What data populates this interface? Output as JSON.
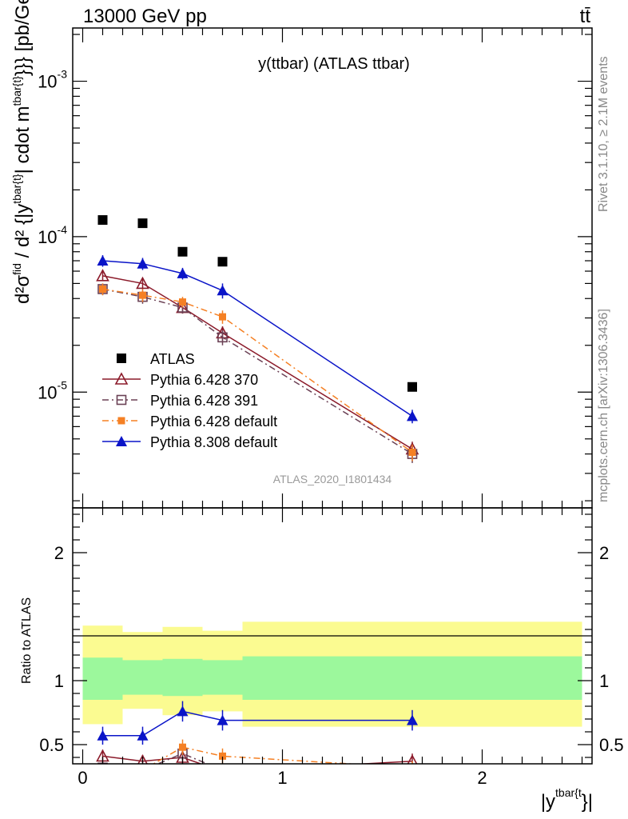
{
  "header": {
    "energy_label": "13000 GeV pp",
    "process_label": "tt̄"
  },
  "side_labels": {
    "rivet": "Rivet 3.1.10, ≥ 2.1M events",
    "mcplots": "mcplots.cern.ch [arXiv:1306.3436]"
  },
  "chart_data": [
    {
      "type": "scatter",
      "title": "y(ttbar) (ATLAS ttbar)",
      "watermark": "ATLAS_2020_I1801434",
      "ylabel_main": "d²σ^fid / d²{|y^tbar{t}| cdot m^tbar{t}}} [pb/GeV]",
      "xlabel": "|y^tbar{t}|",
      "yscale": "log",
      "ylim": [
        1.8e-06,
        0.0022
      ],
      "xlim": [
        -0.05,
        2.55
      ],
      "y_ticks_labeled": [
        "10^-3",
        "10^-4",
        "10^-5"
      ],
      "legend_position": "lower-left",
      "x": [
        0.1,
        0.3,
        0.5,
        0.7,
        1.65
      ],
      "x_edges": [
        0.0,
        0.2,
        0.4,
        0.6,
        0.8,
        2.5
      ],
      "series": [
        {
          "name": "ATLAS",
          "color": "#000000",
          "marker": "square-filled",
          "line": "none",
          "values": [
            0.000128,
            0.000122,
            8e-05,
            6.9e-05,
            1.08e-05
          ]
        },
        {
          "name": "Pythia 6.428 370",
          "color": "#8b1a2a",
          "marker": "triangle-open",
          "line": "solid",
          "values": [
            5.6e-05,
            5e-05,
            3.5e-05,
            2.4e-05,
            4.3e-06
          ],
          "errors": [
            4e-06,
            4e-06,
            3e-06,
            2.5e-06,
            5e-07
          ]
        },
        {
          "name": "Pythia 6.428 391",
          "color": "#6b4155",
          "marker": "square-open",
          "line": "dashdot",
          "values": [
            4.6e-05,
            4.1e-05,
            3.5e-05,
            2.25e-05,
            4e-06
          ],
          "errors": [
            4e-06,
            4e-06,
            3e-06,
            2.5e-06,
            5e-07
          ]
        },
        {
          "name": "Pythia 6.428 default",
          "color": "#f58024",
          "marker": "square-filled-small",
          "line": "dashdot",
          "values": [
            4.6e-05,
            4.2e-05,
            3.8e-05,
            3.05e-05,
            4.1e-06
          ],
          "errors": [
            4e-06,
            4e-06,
            3e-06,
            3e-06,
            5e-07
          ]
        },
        {
          "name": "Pythia 8.308 default",
          "color": "#0a14c8",
          "marker": "triangle-filled",
          "line": "solid",
          "values": [
            7e-05,
            6.7e-05,
            5.8e-05,
            4.5e-05,
            7e-06
          ],
          "errors": [
            6e-06,
            6e-06,
            5e-06,
            5e-06,
            7e-07
          ]
        }
      ]
    },
    {
      "type": "scatter",
      "ylabel": "Ratio to ATLAS",
      "yscale": "linear",
      "ylim": [
        0.35,
        2.35
      ],
      "xlim": [
        -0.05,
        2.55
      ],
      "y_ticks": [
        0.5,
        1,
        2
      ],
      "x_ticks": [
        0,
        1,
        2
      ],
      "reference_line": 1,
      "bands": {
        "x_edges": [
          0.0,
          0.2,
          0.4,
          0.6,
          0.8,
          2.5
        ],
        "inner_color": "#9cf89c",
        "outer_color": "#fbfb91",
        "inner_low": [
          0.85,
          0.89,
          0.88,
          0.89,
          0.85
        ],
        "inner_high": [
          1.18,
          1.16,
          1.17,
          1.16,
          1.19
        ],
        "outer_low": [
          0.66,
          0.78,
          0.73,
          0.76,
          0.64
        ],
        "outer_high": [
          1.43,
          1.38,
          1.42,
          1.39,
          1.46
        ]
      },
      "x": [
        0.1,
        0.3,
        0.5,
        0.7,
        1.65
      ],
      "series": [
        {
          "name": "Pythia 6.428 370",
          "color": "#8b1a2a",
          "marker": "triangle-open",
          "line": "solid",
          "values": [
            0.41,
            0.37,
            0.4,
            0.29,
            0.37
          ],
          "errors": [
            0.05,
            0.05,
            0.05,
            0.05,
            0.06
          ]
        },
        {
          "name": "Pythia 6.428 391",
          "color": "#6b4155",
          "marker": "square-open",
          "line": "dashdot",
          "values": [
            0.32,
            0.3,
            0.43,
            0.3,
            0.3
          ],
          "errors": [
            0.05,
            0.05,
            0.05,
            0.05,
            0.05
          ]
        },
        {
          "name": "Pythia 6.428 default",
          "color": "#f58024",
          "marker": "square-filled-small",
          "line": "dashdot",
          "values": [
            0.3,
            0.3,
            0.48,
            0.41,
            0.32
          ],
          "errors": [
            0.05,
            0.05,
            0.06,
            0.06,
            0.05
          ]
        },
        {
          "name": "Pythia 8.308 default",
          "color": "#0a14c8",
          "marker": "triangle-filled",
          "line": "solid",
          "values": [
            0.57,
            0.57,
            0.76,
            0.69,
            0.69
          ],
          "errors": [
            0.07,
            0.07,
            0.08,
            0.08,
            0.08
          ]
        }
      ]
    }
  ]
}
